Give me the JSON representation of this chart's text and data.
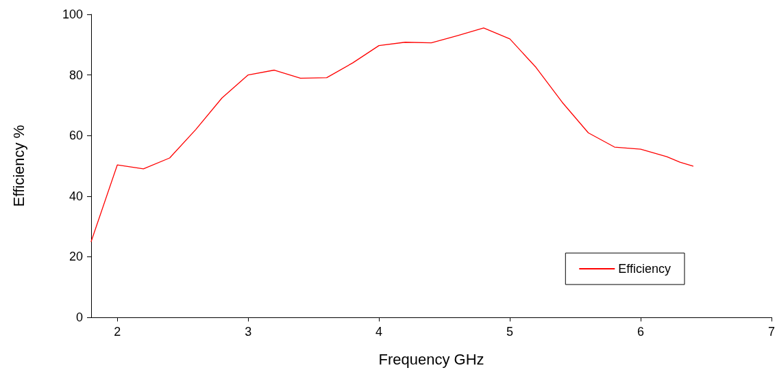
{
  "chart_data": {
    "type": "line",
    "xlabel": "Frequency GHz",
    "ylabel": "Efficiency %",
    "x": [
      1.8,
      2.0,
      2.2,
      2.4,
      2.6,
      2.8,
      3.0,
      3.2,
      3.4,
      3.6,
      3.8,
      4.0,
      4.2,
      4.4,
      4.6,
      4.8,
      5.0,
      5.2,
      5.4,
      5.6,
      5.8,
      6.0,
      6.2,
      6.3,
      6.4
    ],
    "series": [
      {
        "name": "Efficiency",
        "color": "#ff0000",
        "values": [
          25,
          50.3,
          49,
          52.6,
          62,
          72.4,
          80,
          81.6,
          78.9,
          79.1,
          84,
          89.7,
          90.8,
          90.6,
          93,
          95.5,
          91.9,
          82.5,
          71,
          60.9,
          56.2,
          55.5,
          53,
          51.2,
          49.9
        ]
      }
    ],
    "xlim": [
      1.8,
      7
    ],
    "xticks": [
      2,
      3,
      4,
      5,
      6,
      7
    ],
    "ylim": [
      0,
      100
    ],
    "yticks": [
      0,
      20,
      40,
      60,
      80,
      100
    ],
    "grid": false,
    "legend": "bottom right",
    "marker": "none",
    "line_style": "solid"
  }
}
